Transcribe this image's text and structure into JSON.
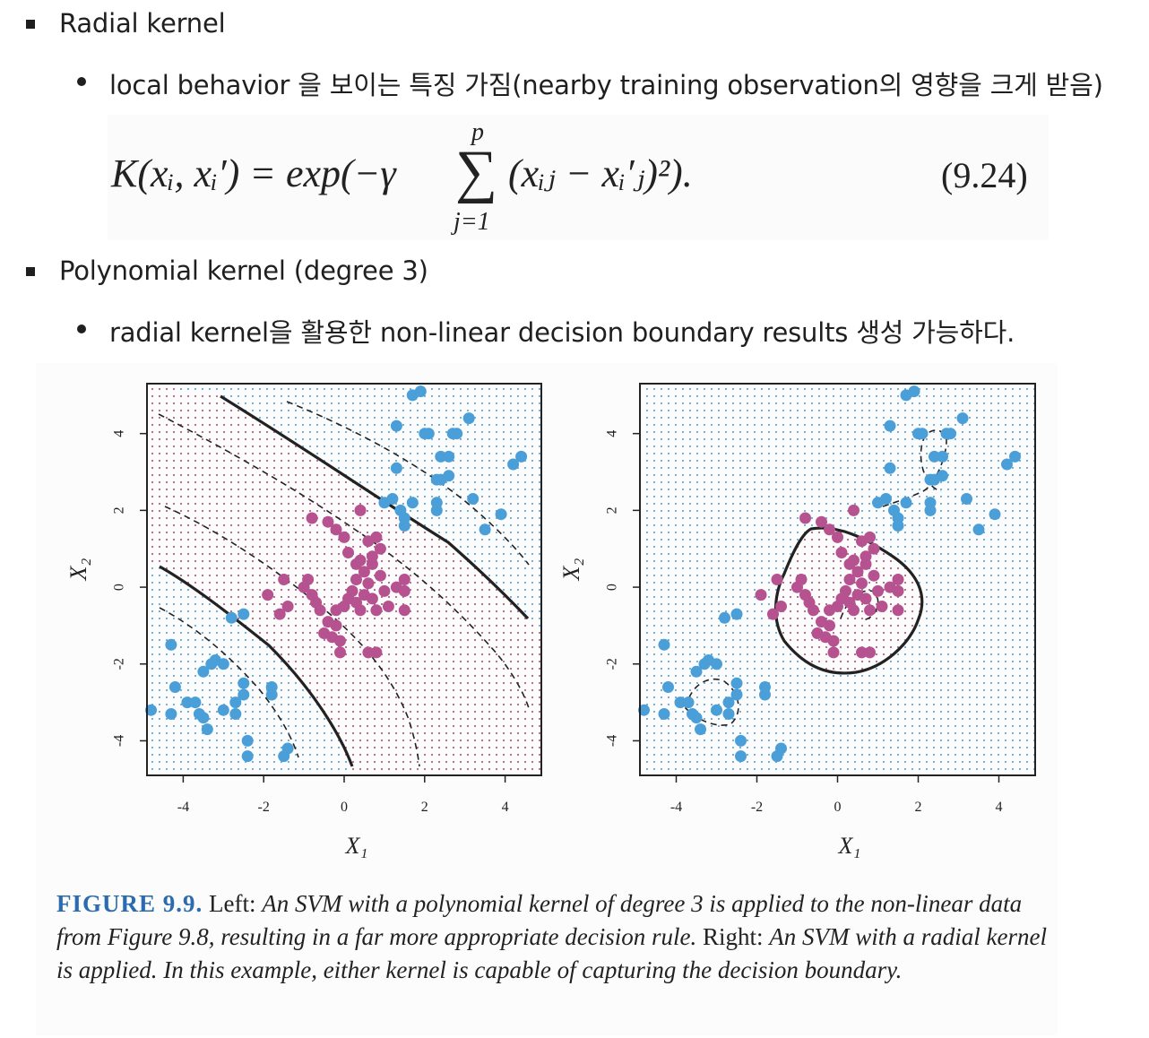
{
  "bullets": [
    {
      "level": 1,
      "text": "Radial kernel"
    },
    {
      "level": 2,
      "text": "local behavior 을 보이는 특징 가짐(nearby training observation의 영향을 크게 받음)"
    },
    {
      "level": 1,
      "text": "Polynomial kernel (degree 3)"
    },
    {
      "level": 2,
      "text": "radial kernel을 활용한 non-linear decision boundary results 생성 가능하다."
    }
  ],
  "formula": {
    "lhs": "K(xᵢ, xᵢ′) = exp(−γ",
    "sum_top": "p",
    "sum_bottom": "j=1",
    "rhs": "(xᵢⱼ − xᵢ′ⱼ)²).",
    "number": "(9.24)"
  },
  "figure": {
    "left_panel": {
      "xlabel": "X₁",
      "ylabel": "X₂",
      "xticks": [
        "-4",
        "-2",
        "0",
        "2",
        "4"
      ],
      "yticks": [
        "-4",
        "-2",
        "0",
        "2",
        "4"
      ]
    },
    "right_panel": {
      "xlabel": "X₁",
      "ylabel": "X₂",
      "xticks": [
        "-4",
        "-2",
        "0",
        "2",
        "4"
      ],
      "yticks": [
        "-4",
        "-2",
        "0",
        "2",
        "4"
      ]
    },
    "colors": {
      "blue": "#4a9fd8",
      "pink": "#b5528f",
      "grid_blue": "#4a9fd8",
      "grid_pink": "#c9547a"
    },
    "caption": {
      "label": "FIGURE 9.9.",
      "left_word": "Left:",
      "left_text": "An SVM with a polynomial kernel of degree 3 is applied to the non-linear data from Figure 9.8, resulting in a far more appropriate decision rule.",
      "right_word": "Right:",
      "right_text": "An SVM with a radial kernel is applied. In this example, either kernel is capable of capturing the decision boundary."
    }
  },
  "chart_data": [
    {
      "type": "scatter",
      "title": "",
      "xlabel": "X₁",
      "ylabel": "X₂",
      "xlim": [
        -4.9,
        4.9
      ],
      "ylim": [
        -4.9,
        5.3
      ],
      "series": [
        {
          "name": "",
          "color": "#4a9fd8",
          "points": [
            [
              -4.8,
              -3.2
            ],
            [
              -4.3,
              -3.3
            ],
            [
              -4.2,
              -2.6
            ],
            [
              -4.3,
              -1.5
            ],
            [
              -3.9,
              -3.0
            ],
            [
              -3.7,
              -3.0
            ],
            [
              -3.6,
              -3.3
            ],
            [
              -3.5,
              -3.4
            ],
            [
              -3.4,
              -3.7
            ],
            [
              -3.3,
              -2.0
            ],
            [
              -3.2,
              -1.9
            ],
            [
              -3.5,
              -2.2
            ],
            [
              -3.0,
              -2.0
            ],
            [
              -3.0,
              -3.2
            ],
            [
              -2.7,
              -3.3
            ],
            [
              -2.7,
              -3.0
            ],
            [
              -2.5,
              -2.5
            ],
            [
              -2.5,
              -2.8
            ],
            [
              -2.4,
              -4.0
            ],
            [
              -2.4,
              -4.4
            ],
            [
              -1.8,
              -2.6
            ],
            [
              -1.8,
              -2.8
            ],
            [
              -1.5,
              -4.4
            ],
            [
              -1.4,
              -4.2
            ],
            [
              -2.8,
              -0.8
            ],
            [
              -2.5,
              -0.7
            ],
            [
              1.7,
              5.0
            ],
            [
              1.9,
              5.1
            ],
            [
              2.0,
              4.0
            ],
            [
              2.1,
              4.0
            ],
            [
              2.4,
              3.4
            ],
            [
              2.6,
              3.4
            ],
            [
              2.7,
              4.0
            ],
            [
              2.8,
              4.0
            ],
            [
              3.1,
              4.4
            ],
            [
              1.3,
              4.2
            ],
            [
              3.9,
              1.9
            ],
            [
              4.2,
              3.2
            ],
            [
              4.4,
              3.4
            ],
            [
              3.2,
              2.3
            ],
            [
              3.5,
              1.5
            ],
            [
              1.3,
              3.1
            ],
            [
              1.2,
              2.3
            ],
            [
              1.0,
              2.2
            ],
            [
              1.7,
              2.2
            ],
            [
              2.3,
              2.8
            ],
            [
              2.4,
              2.8
            ],
            [
              2.3,
              2.2
            ],
            [
              2.6,
              2.9
            ],
            [
              2.3,
              2.0
            ],
            [
              1.4,
              2.0
            ],
            [
              1.5,
              1.8
            ],
            [
              1.5,
              1.6
            ]
          ]
        },
        {
          "name": "",
          "color": "#b5528f",
          "points": [
            [
              -1.6,
              -0.7
            ],
            [
              -1.4,
              -0.5
            ],
            [
              -1.0,
              0.0
            ],
            [
              -0.9,
              0.2
            ],
            [
              -0.8,
              -0.2
            ],
            [
              -0.7,
              -0.4
            ],
            [
              -0.6,
              -0.6
            ],
            [
              -0.5,
              -1.2
            ],
            [
              -0.4,
              -0.9
            ],
            [
              -0.3,
              -1.3
            ],
            [
              -0.2,
              -0.6
            ],
            [
              -0.2,
              -1.0
            ],
            [
              -0.1,
              -1.7
            ],
            [
              -0.1,
              -1.4
            ],
            [
              0.0,
              -0.5
            ],
            [
              0.1,
              -0.3
            ],
            [
              0.2,
              -0.1
            ],
            [
              0.3,
              0.2
            ],
            [
              0.3,
              -0.4
            ],
            [
              0.4,
              -0.6
            ],
            [
              0.5,
              0.4
            ],
            [
              0.5,
              -0.2
            ],
            [
              0.6,
              0.1
            ],
            [
              0.7,
              0.6
            ],
            [
              0.7,
              -0.3
            ],
            [
              0.8,
              -0.6
            ],
            [
              0.9,
              0.3
            ],
            [
              1.0,
              -0.1
            ],
            [
              1.1,
              -0.5
            ],
            [
              1.3,
              0.0
            ],
            [
              1.5,
              -0.1
            ],
            [
              1.5,
              0.2
            ],
            [
              1.5,
              -0.6
            ],
            [
              -0.8,
              1.8
            ],
            [
              -0.4,
              1.7
            ],
            [
              -0.2,
              1.5
            ],
            [
              0.0,
              1.3
            ],
            [
              0.1,
              0.9
            ],
            [
              0.3,
              0.6
            ],
            [
              0.4,
              0.7
            ],
            [
              0.6,
              1.2
            ],
            [
              0.7,
              0.8
            ],
            [
              0.8,
              1.3
            ],
            [
              0.9,
              1.0
            ],
            [
              0.4,
              2.0
            ],
            [
              -1.9,
              -0.2
            ],
            [
              -1.5,
              0.2
            ],
            [
              0.6,
              -1.7
            ],
            [
              0.8,
              -1.7
            ]
          ]
        }
      ]
    },
    {
      "type": "scatter",
      "title": "",
      "xlabel": "X₁",
      "ylabel": "X₂",
      "xlim": [
        -4.9,
        4.9
      ],
      "ylim": [
        -4.9,
        5.3
      ],
      "series": [
        {
          "name": "",
          "color": "#4a9fd8",
          "points": [
            [
              -4.8,
              -3.2
            ],
            [
              -4.3,
              -3.3
            ],
            [
              -4.2,
              -2.6
            ],
            [
              -4.3,
              -1.5
            ],
            [
              -3.9,
              -3.0
            ],
            [
              -3.7,
              -3.0
            ],
            [
              -3.6,
              -3.3
            ],
            [
              -3.5,
              -3.4
            ],
            [
              -3.4,
              -3.7
            ],
            [
              -3.3,
              -2.0
            ],
            [
              -3.2,
              -1.9
            ],
            [
              -3.5,
              -2.2
            ],
            [
              -3.0,
              -2.0
            ],
            [
              -3.0,
              -3.2
            ],
            [
              -2.7,
              -3.3
            ],
            [
              -2.7,
              -3.0
            ],
            [
              -2.5,
              -2.5
            ],
            [
              -2.5,
              -2.8
            ],
            [
              -2.4,
              -4.0
            ],
            [
              -2.4,
              -4.4
            ],
            [
              -1.8,
              -2.6
            ],
            [
              -1.8,
              -2.8
            ],
            [
              -1.5,
              -4.4
            ],
            [
              -1.4,
              -4.2
            ],
            [
              -2.8,
              -0.8
            ],
            [
              -2.5,
              -0.7
            ],
            [
              1.7,
              5.0
            ],
            [
              1.9,
              5.1
            ],
            [
              2.0,
              4.0
            ],
            [
              2.1,
              4.0
            ],
            [
              2.4,
              3.4
            ],
            [
              2.6,
              3.4
            ],
            [
              2.7,
              4.0
            ],
            [
              2.8,
              4.0
            ],
            [
              3.1,
              4.4
            ],
            [
              1.3,
              4.2
            ],
            [
              3.9,
              1.9
            ],
            [
              4.2,
              3.2
            ],
            [
              4.4,
              3.4
            ],
            [
              3.2,
              2.3
            ],
            [
              3.5,
              1.5
            ],
            [
              1.3,
              3.1
            ],
            [
              1.2,
              2.3
            ],
            [
              1.0,
              2.2
            ],
            [
              1.7,
              2.2
            ],
            [
              2.3,
              2.8
            ],
            [
              2.4,
              2.8
            ],
            [
              2.3,
              2.2
            ],
            [
              2.6,
              2.9
            ],
            [
              2.3,
              2.0
            ],
            [
              1.4,
              2.0
            ],
            [
              1.5,
              1.8
            ],
            [
              1.5,
              1.6
            ]
          ]
        },
        {
          "name": "",
          "color": "#b5528f",
          "points": [
            [
              -1.6,
              -0.7
            ],
            [
              -1.4,
              -0.5
            ],
            [
              -1.0,
              0.0
            ],
            [
              -0.9,
              0.2
            ],
            [
              -0.8,
              -0.2
            ],
            [
              -0.7,
              -0.4
            ],
            [
              -0.6,
              -0.6
            ],
            [
              -0.5,
              -1.2
            ],
            [
              -0.4,
              -0.9
            ],
            [
              -0.3,
              -1.3
            ],
            [
              -0.2,
              -0.6
            ],
            [
              -0.2,
              -1.0
            ],
            [
              -0.1,
              -1.7
            ],
            [
              -0.1,
              -1.4
            ],
            [
              0.0,
              -0.5
            ],
            [
              0.1,
              -0.3
            ],
            [
              0.2,
              -0.1
            ],
            [
              0.3,
              0.2
            ],
            [
              0.3,
              -0.4
            ],
            [
              0.4,
              -0.6
            ],
            [
              0.5,
              0.4
            ],
            [
              0.5,
              -0.2
            ],
            [
              0.6,
              0.1
            ],
            [
              0.7,
              0.6
            ],
            [
              0.7,
              -0.3
            ],
            [
              0.8,
              -0.6
            ],
            [
              0.9,
              0.3
            ],
            [
              1.0,
              -0.1
            ],
            [
              1.1,
              -0.5
            ],
            [
              1.3,
              0.0
            ],
            [
              1.5,
              -0.1
            ],
            [
              1.5,
              0.2
            ],
            [
              1.5,
              -0.6
            ],
            [
              -0.8,
              1.8
            ],
            [
              -0.4,
              1.7
            ],
            [
              -0.2,
              1.5
            ],
            [
              0.0,
              1.3
            ],
            [
              0.1,
              0.9
            ],
            [
              0.3,
              0.6
            ],
            [
              0.4,
              0.7
            ],
            [
              0.6,
              1.2
            ],
            [
              0.7,
              0.8
            ],
            [
              0.8,
              1.3
            ],
            [
              0.9,
              1.0
            ],
            [
              0.4,
              2.0
            ],
            [
              -1.9,
              -0.2
            ],
            [
              -1.5,
              0.2
            ],
            [
              0.6,
              -1.7
            ],
            [
              0.8,
              -1.7
            ]
          ]
        }
      ]
    }
  ]
}
